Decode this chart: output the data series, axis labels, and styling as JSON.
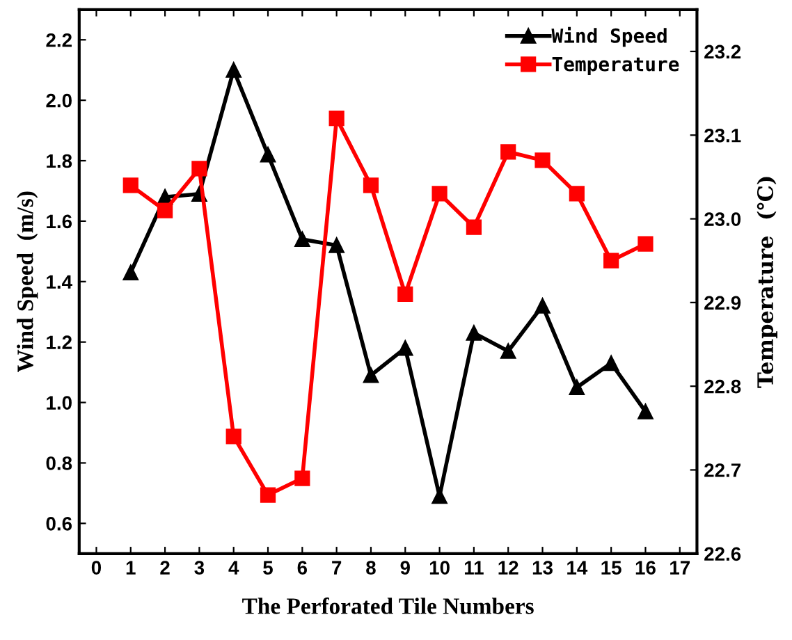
{
  "chart_data": {
    "type": "line",
    "xlabel": "The Perforated Tile Numbers",
    "ylabel": "Wind Speed  (m/s)",
    "y2label": "Temperature  (℃)",
    "x": [
      1,
      2,
      3,
      4,
      5,
      6,
      7,
      8,
      9,
      10,
      11,
      12,
      13,
      14,
      15,
      16
    ],
    "series": [
      {
        "name": "Wind Speed",
        "color": "#000000",
        "marker": "triangle",
        "values": [
          1.43,
          1.68,
          1.69,
          2.1,
          1.82,
          1.54,
          1.52,
          1.09,
          1.18,
          0.69,
          1.23,
          1.17,
          1.32,
          1.05,
          1.13,
          0.97
        ]
      },
      {
        "name": "Temperature",
        "color": "#ff0000",
        "marker": "square",
        "axis": "y2",
        "values": [
          23.04,
          23.01,
          23.06,
          22.74,
          22.67,
          22.69,
          23.12,
          23.04,
          22.91,
          23.03,
          22.99,
          23.08,
          23.07,
          23.03,
          22.95,
          22.97
        ]
      }
    ],
    "xlim": [
      -0.5,
      17.5
    ],
    "xticks": [
      0,
      1,
      2,
      3,
      4,
      5,
      6,
      7,
      8,
      9,
      10,
      11,
      12,
      13,
      14,
      15,
      16,
      17
    ],
    "ylim": [
      0.5,
      2.3
    ],
    "yticks": [
      0.6,
      0.8,
      {
        "value": 1,
        "label": "1.0"
      },
      1.2,
      1.4,
      1.6,
      1.8,
      {
        "value": 2,
        "label": "2.0"
      },
      2.2
    ],
    "y2lim": [
      22.6,
      23.25
    ],
    "y2ticks": [
      22.6,
      22.7,
      22.8,
      22.9,
      {
        "value": 23,
        "label": "23.0"
      },
      23.1,
      23.2
    ],
    "legend": "top right",
    "grid": false,
    "line_style": "solid"
  }
}
